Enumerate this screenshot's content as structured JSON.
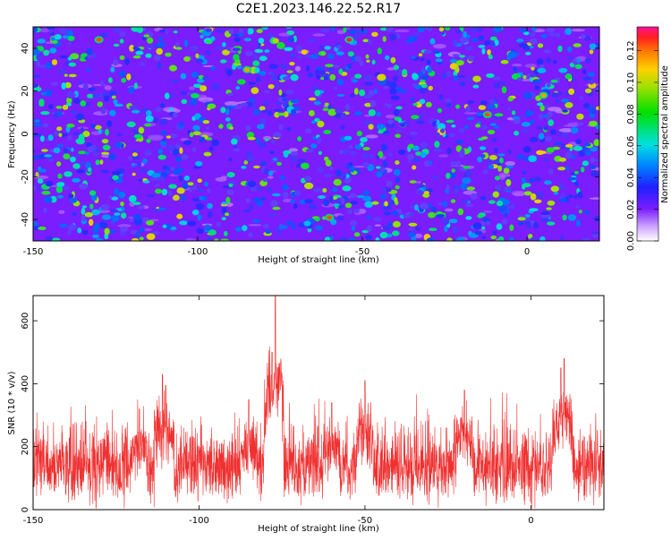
{
  "title": "C2E1.2023.146.22.52.R17",
  "chart_data": [
    {
      "type": "heatmap",
      "xlabel": "Height of straight line (km)",
      "ylabel": "Frequency (Hz)",
      "xlim": [
        -150,
        22
      ],
      "ylim": [
        -50,
        50
      ],
      "xticks": [
        -150,
        -100,
        -50,
        0
      ],
      "yticks": [
        -40,
        -20,
        0,
        20,
        40
      ],
      "colorbar": {
        "label": "Normalized spectral amplitude",
        "range": [
          0,
          0.135
        ],
        "ticks": [
          "0.00",
          "0.02",
          "0.04",
          "0.06",
          "0.08",
          "0.10",
          "0.12"
        ],
        "colormap": "rainbow (white-purple-blue-cyan-green-yellow-red-magenta)"
      },
      "bright_spots": [
        {
          "x": -130,
          "y": 44,
          "value": 0.12
        },
        {
          "x": -54,
          "y": 44,
          "value": 0.13
        },
        {
          "x": -60,
          "y": -39,
          "value": 0.12
        },
        {
          "x": -12,
          "y": 9,
          "value": 0.12
        },
        {
          "x": 5,
          "y": 18,
          "value": 0.11
        },
        {
          "x": -85,
          "y": 30,
          "value": 0.11
        }
      ],
      "grid": false
    },
    {
      "type": "line",
      "xlabel": "Height of straight line (km)",
      "ylabel": "SNR (10 * v/v)",
      "xlim": [
        -150,
        22
      ],
      "ylim": [
        0,
        680
      ],
      "xticks": [
        -150,
        -100,
        -50,
        0
      ],
      "yticks": [
        0,
        200,
        400,
        600
      ],
      "color": "#f03030",
      "baseline_band": [
        40,
        320
      ],
      "peaks": [
        {
          "x": -77,
          "y": 680
        },
        {
          "x": -78,
          "y": 500
        },
        {
          "x": -111,
          "y": 430
        },
        {
          "x": -110,
          "y": 395
        },
        {
          "x": 10,
          "y": 480
        },
        {
          "x": 9,
          "y": 450
        },
        {
          "x": -118,
          "y": 320
        },
        {
          "x": -50,
          "y": 410
        },
        {
          "x": -20,
          "y": 380
        },
        {
          "x": -85,
          "y": 350
        },
        {
          "x": -60,
          "y": 340
        }
      ],
      "grid": false
    }
  ]
}
